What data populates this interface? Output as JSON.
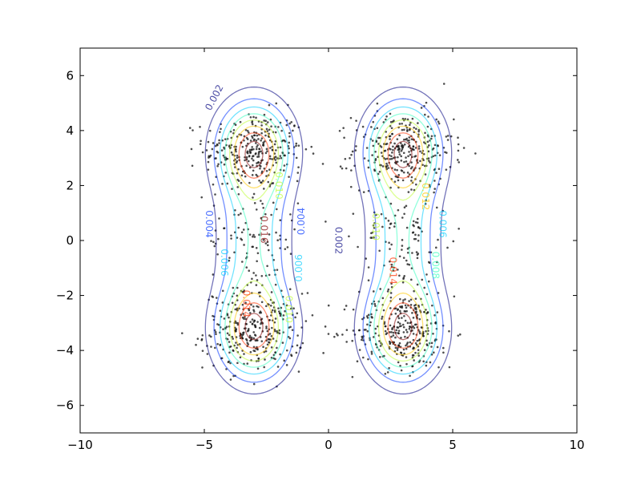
{
  "chart_data": {
    "type": "contour",
    "title": "",
    "xlabel": "",
    "ylabel": "",
    "xlim": [
      -10,
      10
    ],
    "ylim": [
      -7,
      7
    ],
    "grid": false,
    "legend": "none",
    "x_ticks": [
      {
        "value": -10,
        "label": "−10"
      },
      {
        "value": -5,
        "label": "−5"
      },
      {
        "value": 0,
        "label": "0"
      },
      {
        "value": 5,
        "label": "5"
      },
      {
        "value": 10,
        "label": "10"
      }
    ],
    "y_ticks": [
      {
        "value": -6,
        "label": "−6"
      },
      {
        "value": -4,
        "label": "−4"
      },
      {
        "value": -2,
        "label": "−2"
      },
      {
        "value": 0,
        "label": "0"
      },
      {
        "value": 2,
        "label": "2"
      },
      {
        "value": 4,
        "label": "4"
      },
      {
        "value": 6,
        "label": "6"
      }
    ],
    "contour_levels": [
      {
        "value": 0.002,
        "color": "#00007f"
      },
      {
        "value": 0.004,
        "color": "#0033ff"
      },
      {
        "value": 0.006,
        "color": "#00ccff"
      },
      {
        "value": 0.008,
        "color": "#38ffbf"
      },
      {
        "value": 0.01,
        "color": "#bfff38"
      },
      {
        "value": 0.012,
        "color": "#ffc800"
      },
      {
        "value": 0.014,
        "color": "#ff3300"
      },
      {
        "value": 0.016,
        "color": "#7f0000"
      }
    ],
    "contour_labels": [
      {
        "text": "0.002",
        "x": -4.6,
        "y": 5.2,
        "angle": -62,
        "level": 0
      },
      {
        "text": "0.004",
        "x": -4.8,
        "y": 0.6,
        "angle": 90,
        "level": 1
      },
      {
        "text": "0.006",
        "x": -4.2,
        "y": -0.8,
        "angle": 90,
        "level": 2
      },
      {
        "text": "0.016",
        "x": -2.6,
        "y": 0.4,
        "angle": 90,
        "level": 7
      },
      {
        "text": "0.010",
        "x": -2.0,
        "y": 2.0,
        "angle": 90,
        "level": 4
      },
      {
        "text": "0.014",
        "x": -3.3,
        "y": -2.3,
        "angle": 90,
        "level": 6
      },
      {
        "text": "0.010",
        "x": -1.6,
        "y": -2.5,
        "angle": 90,
        "level": 4
      },
      {
        "text": "0.004",
        "x": -1.1,
        "y": 0.7,
        "angle": -90,
        "level": 1
      },
      {
        "text": "0.006",
        "x": -1.2,
        "y": -1.0,
        "angle": -90,
        "level": 2
      },
      {
        "text": "0.002",
        "x": 0.4,
        "y": 0.0,
        "angle": 90,
        "level": 0
      },
      {
        "text": "0.010",
        "x": 1.9,
        "y": 0.5,
        "angle": 90,
        "level": 4
      },
      {
        "text": "0.014",
        "x": 2.6,
        "y": -1.1,
        "angle": 90,
        "level": 6
      },
      {
        "text": "0.012",
        "x": 3.9,
        "y": 1.6,
        "angle": 90,
        "level": 5
      },
      {
        "text": "0.008",
        "x": 4.3,
        "y": -0.9,
        "angle": 90,
        "level": 3
      },
      {
        "text": "0.006",
        "x": 4.6,
        "y": 0.6,
        "angle": 90,
        "level": 2
      }
    ],
    "scatter": {
      "color": "#111111",
      "approx_points": 1500,
      "clusters": [
        {
          "cx": -3.0,
          "cy": 3.3,
          "sx": 1.0,
          "sy": 0.7,
          "n": 300
        },
        {
          "cx": -3.0,
          "cy": -3.3,
          "sx": 1.0,
          "sy": 0.7,
          "n": 300
        },
        {
          "cx": 3.0,
          "cy": 3.3,
          "sx": 1.0,
          "sy": 0.7,
          "n": 300
        },
        {
          "cx": 3.0,
          "cy": -3.3,
          "sx": 1.0,
          "sy": 0.7,
          "n": 300
        },
        {
          "cx": -3.0,
          "cy": 0.0,
          "sx": 0.9,
          "sy": 1.6,
          "n": 140
        },
        {
          "cx": 3.0,
          "cy": 0.0,
          "sx": 0.9,
          "sy": 1.6,
          "n": 140
        }
      ]
    }
  }
}
